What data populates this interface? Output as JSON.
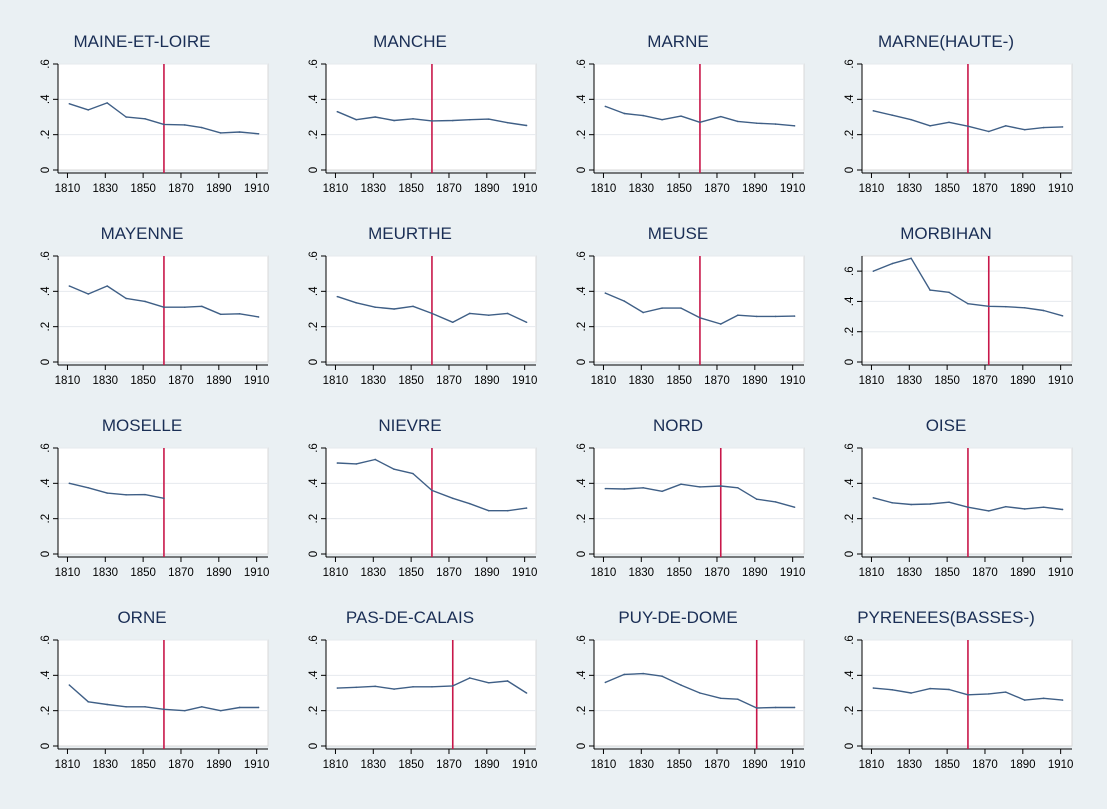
{
  "colors": {
    "background": "#eaf0f3",
    "plot_area": "#ffffff",
    "series_line": "#3f5f86",
    "marker_line": "#c8174a",
    "title_text": "#1a2e55"
  },
  "chart_data": [
    {
      "type": "line",
      "title": "MAINE-ET-LOIRE",
      "x": [
        1811,
        1821,
        1831,
        1841,
        1851,
        1861,
        1872,
        1881,
        1891,
        1901,
        1911
      ],
      "values": [
        0.375,
        0.34,
        0.38,
        0.3,
        0.29,
        0.258,
        0.255,
        0.24,
        0.21,
        0.215,
        0.205
      ],
      "vline": 1861,
      "ylim": [
        0,
        0.6
      ],
      "yticks": [
        0,
        0.2,
        0.4,
        0.6
      ],
      "yticklabels": [
        "0",
        ".2",
        ".4",
        ".6"
      ],
      "xticks": [
        1810,
        1830,
        1850,
        1870,
        1890,
        1910
      ],
      "xticklabels": [
        "1810",
        "1830",
        "1850",
        "1870",
        "1890",
        "1910"
      ]
    },
    {
      "type": "line",
      "title": "MANCHE",
      "x": [
        1811,
        1821,
        1831,
        1841,
        1851,
        1861,
        1872,
        1881,
        1891,
        1901,
        1911
      ],
      "values": [
        0.33,
        0.285,
        0.3,
        0.28,
        0.29,
        0.278,
        0.28,
        0.285,
        0.288,
        0.268,
        0.252
      ],
      "vline": 1861,
      "ylim": [
        0,
        0.6
      ],
      "yticks": [
        0,
        0.2,
        0.4,
        0.6
      ],
      "yticklabels": [
        "0",
        ".2",
        ".4",
        ".6"
      ],
      "xticks": [
        1810,
        1830,
        1850,
        1870,
        1890,
        1910
      ],
      "xticklabels": [
        "1810",
        "1830",
        "1850",
        "1870",
        "1890",
        "1910"
      ]
    },
    {
      "type": "line",
      "title": "MARNE",
      "x": [
        1811,
        1821,
        1831,
        1841,
        1851,
        1861,
        1872,
        1881,
        1891,
        1901,
        1911
      ],
      "values": [
        0.36,
        0.32,
        0.308,
        0.285,
        0.305,
        0.27,
        0.302,
        0.275,
        0.265,
        0.26,
        0.25
      ],
      "vline": 1861,
      "ylim": [
        0,
        0.6
      ],
      "yticks": [
        0,
        0.2,
        0.4,
        0.6
      ],
      "yticklabels": [
        "0",
        ".2",
        ".4",
        ".6"
      ],
      "xticks": [
        1810,
        1830,
        1850,
        1870,
        1890,
        1910
      ],
      "xticklabels": [
        "1810",
        "1830",
        "1850",
        "1870",
        "1890",
        "1910"
      ]
    },
    {
      "type": "line",
      "title": "MARNE(HAUTE-)",
      "x": [
        1811,
        1821,
        1831,
        1841,
        1851,
        1861,
        1872,
        1881,
        1891,
        1901,
        1911
      ],
      "values": [
        0.335,
        0.31,
        0.285,
        0.25,
        0.27,
        0.248,
        0.218,
        0.25,
        0.228,
        0.24,
        0.244
      ],
      "vline": 1861,
      "ylim": [
        0,
        0.6
      ],
      "yticks": [
        0,
        0.2,
        0.4,
        0.6
      ],
      "yticklabels": [
        "0",
        ".2",
        ".4",
        ".6"
      ],
      "xticks": [
        1810,
        1830,
        1850,
        1870,
        1890,
        1910
      ],
      "xticklabels": [
        "1810",
        "1830",
        "1850",
        "1870",
        "1890",
        "1910"
      ]
    },
    {
      "type": "line",
      "title": "MAYENNE",
      "x": [
        1811,
        1821,
        1831,
        1841,
        1851,
        1861,
        1872,
        1881,
        1891,
        1901,
        1911
      ],
      "values": [
        0.43,
        0.385,
        0.43,
        0.36,
        0.343,
        0.31,
        0.31,
        0.315,
        0.27,
        0.273,
        0.255
      ],
      "vline": 1861,
      "ylim": [
        0,
        0.6
      ],
      "yticks": [
        0,
        0.2,
        0.4,
        0.6
      ],
      "yticklabels": [
        "0",
        ".2",
        ".4",
        ".6"
      ],
      "xticks": [
        1810,
        1830,
        1850,
        1870,
        1890,
        1910
      ],
      "xticklabels": [
        "1810",
        "1830",
        "1850",
        "1870",
        "1890",
        "1910"
      ]
    },
    {
      "type": "line",
      "title": "MEURTHE",
      "x": [
        1811,
        1821,
        1831,
        1841,
        1851,
        1861,
        1872,
        1881,
        1891,
        1901,
        1911
      ],
      "values": [
        0.37,
        0.335,
        0.31,
        0.3,
        0.315,
        0.275,
        0.225,
        0.275,
        0.265,
        0.275,
        0.225
      ],
      "vline": 1861,
      "ylim": [
        0,
        0.6
      ],
      "yticks": [
        0,
        0.2,
        0.4,
        0.6
      ],
      "yticklabels": [
        "0",
        ".2",
        ".4",
        ".6"
      ],
      "xticks": [
        1810,
        1830,
        1850,
        1870,
        1890,
        1910
      ],
      "xticklabels": [
        "1810",
        "1830",
        "1850",
        "1870",
        "1890",
        "1910"
      ]
    },
    {
      "type": "line",
      "title": "MEUSE",
      "x": [
        1811,
        1821,
        1831,
        1841,
        1851,
        1861,
        1872,
        1881,
        1891,
        1901,
        1911
      ],
      "values": [
        0.39,
        0.345,
        0.28,
        0.305,
        0.305,
        0.25,
        0.215,
        0.265,
        0.258,
        0.258,
        0.26
      ],
      "vline": 1861,
      "ylim": [
        0,
        0.6
      ],
      "yticks": [
        0,
        0.2,
        0.4,
        0.6
      ],
      "yticklabels": [
        "0",
        ".2",
        ".4",
        ".6"
      ],
      "xticks": [
        1810,
        1830,
        1850,
        1870,
        1890,
        1910
      ],
      "xticklabels": [
        "1810",
        "1830",
        "1850",
        "1870",
        "1890",
        "1910"
      ]
    },
    {
      "type": "line",
      "title": "MORBIHAN",
      "x": [
        1811,
        1821,
        1831,
        1841,
        1851,
        1861,
        1872,
        1881,
        1891,
        1901,
        1911
      ],
      "values": [
        0.6,
        0.65,
        0.685,
        0.475,
        0.46,
        0.385,
        0.368,
        0.365,
        0.358,
        0.34,
        0.305
      ],
      "vline": 1872,
      "ylim": [
        0,
        0.7
      ],
      "yticks": [
        0,
        0.2,
        0.4,
        0.6
      ],
      "yticklabels": [
        "0",
        ".2",
        ".4",
        ".6"
      ],
      "xticks": [
        1810,
        1830,
        1850,
        1870,
        1890,
        1910
      ],
      "xticklabels": [
        "1810",
        "1830",
        "1850",
        "1870",
        "1890",
        "1910"
      ]
    },
    {
      "type": "line",
      "title": "MOSELLE",
      "x": [
        1811,
        1821,
        1831,
        1841,
        1851,
        1861
      ],
      "values": [
        0.4,
        0.375,
        0.345,
        0.335,
        0.336,
        0.315
      ],
      "vline": 1861,
      "ylim": [
        0,
        0.6
      ],
      "yticks": [
        0,
        0.2,
        0.4,
        0.6
      ],
      "yticklabels": [
        "0",
        ".2",
        ".4",
        ".6"
      ],
      "xticks": [
        1810,
        1830,
        1850,
        1870,
        1890,
        1910
      ],
      "xticklabels": [
        "1810",
        "1830",
        "1850",
        "1870",
        "1890",
        "1910"
      ]
    },
    {
      "type": "line",
      "title": "NIEVRE",
      "x": [
        1811,
        1821,
        1831,
        1841,
        1851,
        1861,
        1872,
        1881,
        1891,
        1901,
        1911
      ],
      "values": [
        0.515,
        0.51,
        0.535,
        0.48,
        0.455,
        0.36,
        0.315,
        0.285,
        0.245,
        0.245,
        0.26
      ],
      "vline": 1861,
      "ylim": [
        0,
        0.6
      ],
      "yticks": [
        0,
        0.2,
        0.4,
        0.6
      ],
      "yticklabels": [
        "0",
        ".2",
        ".4",
        ".6"
      ],
      "xticks": [
        1810,
        1830,
        1850,
        1870,
        1890,
        1910
      ],
      "xticklabels": [
        "1810",
        "1830",
        "1850",
        "1870",
        "1890",
        "1910"
      ]
    },
    {
      "type": "line",
      "title": "NORD",
      "x": [
        1811,
        1821,
        1831,
        1841,
        1851,
        1861,
        1872,
        1881,
        1891,
        1901,
        1911
      ],
      "values": [
        0.37,
        0.368,
        0.375,
        0.355,
        0.395,
        0.38,
        0.385,
        0.375,
        0.31,
        0.295,
        0.265
      ],
      "vline": 1872,
      "ylim": [
        0,
        0.6
      ],
      "yticks": [
        0,
        0.2,
        0.4,
        0.6
      ],
      "yticklabels": [
        "0",
        ".2",
        ".4",
        ".6"
      ],
      "xticks": [
        1810,
        1830,
        1850,
        1870,
        1890,
        1910
      ],
      "xticklabels": [
        "1810",
        "1830",
        "1850",
        "1870",
        "1890",
        "1910"
      ]
    },
    {
      "type": "line",
      "title": "OISE",
      "x": [
        1811,
        1821,
        1831,
        1841,
        1851,
        1861,
        1872,
        1881,
        1891,
        1901,
        1911
      ],
      "values": [
        0.318,
        0.29,
        0.28,
        0.283,
        0.293,
        0.265,
        0.244,
        0.268,
        0.255,
        0.265,
        0.252
      ],
      "vline": 1861,
      "ylim": [
        0,
        0.6
      ],
      "yticks": [
        0,
        0.2,
        0.4,
        0.6
      ],
      "yticklabels": [
        "0",
        ".2",
        ".4",
        ".6"
      ],
      "xticks": [
        1810,
        1830,
        1850,
        1870,
        1890,
        1910
      ],
      "xticklabels": [
        "1810",
        "1830",
        "1850",
        "1870",
        "1890",
        "1910"
      ]
    },
    {
      "type": "line",
      "title": "ORNE",
      "x": [
        1811,
        1821,
        1831,
        1841,
        1851,
        1861,
        1872,
        1881,
        1891,
        1901,
        1911
      ],
      "values": [
        0.345,
        0.25,
        0.235,
        0.222,
        0.222,
        0.208,
        0.2,
        0.222,
        0.2,
        0.218,
        0.218
      ],
      "vline": 1861,
      "ylim": [
        0,
        0.6
      ],
      "yticks": [
        0,
        0.2,
        0.4,
        0.6
      ],
      "yticklabels": [
        "0",
        ".2",
        ".4",
        ".6"
      ],
      "xticks": [
        1810,
        1830,
        1850,
        1870,
        1890,
        1910
      ],
      "xticklabels": [
        "1810",
        "1830",
        "1850",
        "1870",
        "1890",
        "1910"
      ]
    },
    {
      "type": "line",
      "title": "PAS-DE-CALAIS",
      "x": [
        1811,
        1821,
        1831,
        1841,
        1851,
        1861,
        1872,
        1881,
        1891,
        1901,
        1911
      ],
      "values": [
        0.328,
        0.332,
        0.338,
        0.322,
        0.335,
        0.335,
        0.34,
        0.385,
        0.358,
        0.368,
        0.3
      ],
      "vline": 1872,
      "ylim": [
        0,
        0.6
      ],
      "yticks": [
        0,
        0.2,
        0.4,
        0.6
      ],
      "yticklabels": [
        "0",
        ".2",
        ".4",
        ".6"
      ],
      "xticks": [
        1810,
        1830,
        1850,
        1870,
        1890,
        1910
      ],
      "xticklabels": [
        "1810",
        "1830",
        "1850",
        "1870",
        "1890",
        "1910"
      ]
    },
    {
      "type": "line",
      "title": "PUY-DE-DOME",
      "x": [
        1811,
        1821,
        1831,
        1841,
        1851,
        1861,
        1872,
        1881,
        1891,
        1901,
        1911
      ],
      "values": [
        0.36,
        0.405,
        0.41,
        0.395,
        0.345,
        0.3,
        0.27,
        0.265,
        0.215,
        0.218,
        0.218
      ],
      "vline": 1891,
      "ylim": [
        0,
        0.6
      ],
      "yticks": [
        0,
        0.2,
        0.4,
        0.6
      ],
      "yticklabels": [
        "0",
        ".2",
        ".4",
        ".6"
      ],
      "xticks": [
        1810,
        1830,
        1850,
        1870,
        1890,
        1910
      ],
      "xticklabels": [
        "1810",
        "1830",
        "1850",
        "1870",
        "1890",
        "1910"
      ]
    },
    {
      "type": "line",
      "title": "PYRENEES(BASSES-)",
      "x": [
        1811,
        1821,
        1831,
        1841,
        1851,
        1861,
        1872,
        1881,
        1891,
        1901,
        1911
      ],
      "values": [
        0.328,
        0.318,
        0.3,
        0.325,
        0.32,
        0.29,
        0.295,
        0.305,
        0.26,
        0.27,
        0.26
      ],
      "vline": 1861,
      "ylim": [
        0,
        0.6
      ],
      "yticks": [
        0,
        0.2,
        0.4,
        0.6
      ],
      "yticklabels": [
        "0",
        ".2",
        ".4",
        ".6"
      ],
      "xticks": [
        1810,
        1830,
        1850,
        1870,
        1890,
        1910
      ],
      "xticklabels": [
        "1810",
        "1830",
        "1850",
        "1870",
        "1890",
        "1910"
      ]
    }
  ]
}
